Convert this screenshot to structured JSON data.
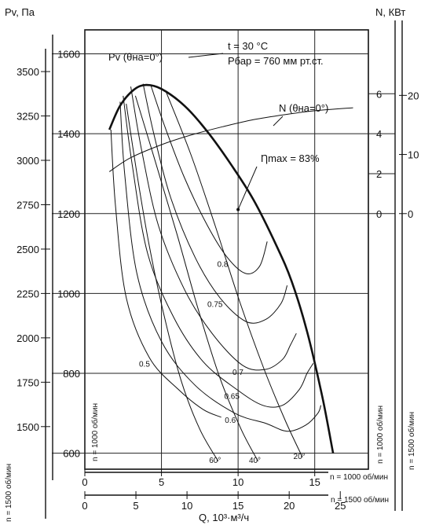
{
  "chart_data": {
    "type": "line",
    "axis_titles": {
      "pv_left": "Pv, Па",
      "n_right": "N, КВт",
      "q_bottom": "Q, 10³·м³/ч"
    },
    "annotations": {
      "temperature": "t = 30 °C",
      "pressure": "Рбар = 760 мм рт.ст.",
      "pv_curve": "Pv (θна=0°)",
      "n_curve": "N (θна=0°)",
      "eta_max": "Ƞmax = 83%"
    },
    "speed_labels": {
      "n1000_left": "n = 1000 об/мин",
      "n1500_left": "n = 1500 об/мин",
      "n1000_right": "n = 1000 об/мин",
      "n1500_right": "n = 1500 об/мин",
      "n1000_bottom": "n = 1000 об/мин",
      "n1500_bottom": "n = 1500 об/мин"
    },
    "pv1000_ticks": [
      "600",
      "800",
      "1000",
      "1200",
      "1400",
      "1600"
    ],
    "pv1500_ticks": [
      "1500",
      "1750",
      "2000",
      "2250",
      "2500",
      "2750",
      "3000",
      "3250",
      "3500"
    ],
    "n1000_ticks": [
      "0",
      "2",
      "4",
      "6"
    ],
    "n1500_ticks": [
      "0",
      "10",
      "20"
    ],
    "q1000_ticks": [
      "0",
      "5",
      "10",
      "15"
    ],
    "q1500_ticks": [
      "0",
      "5",
      "10",
      "15",
      "20",
      "25"
    ],
    "pv1000_ylim": [
      560,
      1660
    ],
    "q1000_xlim": [
      0,
      18.5
    ],
    "pv_theta0": {
      "name": "Pv (θна=0°)",
      "x": [
        1.6,
        2.3,
        3.2,
        4.0,
        5.0,
        6.5,
        8.0,
        9.5,
        11.0,
        12.5,
        13.5,
        14.5,
        15.5,
        16.2
      ],
      "y": [
        1410,
        1470,
        1510,
        1522,
        1512,
        1470,
        1405,
        1325,
        1235,
        1120,
        1030,
        905,
        740,
        600
      ]
    },
    "n_theta0": {
      "name": "N (θна=0°)",
      "x": [
        1.6,
        3.0,
        5.0,
        7.0,
        9.0,
        11.0,
        13.0,
        15.0,
        17.5
      ],
      "y": [
        2.1,
        2.8,
        3.45,
        3.95,
        4.35,
        4.7,
        4.95,
        5.15,
        5.3
      ]
    },
    "blade_angles": [
      {
        "label": "60°",
        "x": [
          2.7,
          3.4,
          4.2,
          5.2,
          6.3,
          7.5,
          8.7
        ],
        "y": [
          1475,
          1300,
          1120,
          940,
          780,
          660,
          580
        ]
      },
      {
        "label": "40°",
        "x": [
          3.3,
          4.6,
          6.0,
          7.4,
          8.8,
          10.2,
          11.3
        ],
        "y": [
          1495,
          1330,
          1150,
          960,
          790,
          660,
          580
        ]
      },
      {
        "label": "20°",
        "x": [
          5.3,
          6.9,
          8.5,
          10.1,
          11.7,
          13.1,
          14.2
        ],
        "y": [
          1505,
          1350,
          1170,
          980,
          810,
          680,
          590
        ]
      }
    ],
    "efficiency_contours": [
      {
        "label": "0.8",
        "x": [
          4.3,
          5.2,
          6.5,
          8.0,
          9.3,
          10.5,
          11.4,
          11.9
        ],
        "y": [
          1522,
          1420,
          1290,
          1170,
          1090,
          1050,
          1068,
          1130
        ]
      },
      {
        "label": "0.75",
        "x": [
          3.8,
          4.5,
          5.6,
          7.2,
          8.8,
          10.5,
          11.8,
          12.8,
          13.2
        ],
        "y": [
          1525,
          1400,
          1240,
          1090,
          990,
          930,
          935,
          975,
          1020
        ]
      },
      {
        "label": "0.7",
        "x": [
          3.0,
          3.7,
          4.8,
          6.5,
          8.3,
          10.3,
          11.8,
          12.9,
          13.4,
          13.8
        ],
        "y": [
          1518,
          1360,
          1170,
          1010,
          900,
          820,
          810,
          835,
          870,
          900
        ]
      },
      {
        "label": "0.65",
        "x": [
          2.5,
          3.1,
          4.1,
          5.8,
          7.7,
          9.9,
          11.6,
          12.9,
          14.0,
          14.5,
          14.9
        ],
        "y": [
          1495,
          1320,
          1100,
          940,
          830,
          760,
          720,
          720,
          760,
          800,
          825
        ]
      },
      {
        "label": "0.6",
        "x": [
          2.3,
          2.6,
          3.4,
          5.0,
          7.2,
          9.8,
          11.8,
          13.2,
          14.4,
          15.2,
          15.4
        ],
        "y": [
          1480,
          1300,
          1050,
          880,
          770,
          700,
          675,
          655,
          670,
          700,
          720
        ]
      },
      {
        "label": "0.5",
        "x": [
          1.7,
          2.0,
          2.7,
          4.2,
          6.1,
          7.7,
          8.9
        ],
        "y": [
          1410,
          1220,
          990,
          840,
          760,
          710,
          690
        ]
      }
    ],
    "eta_max_point": {
      "x": 10.0,
      "y": 1210
    }
  }
}
